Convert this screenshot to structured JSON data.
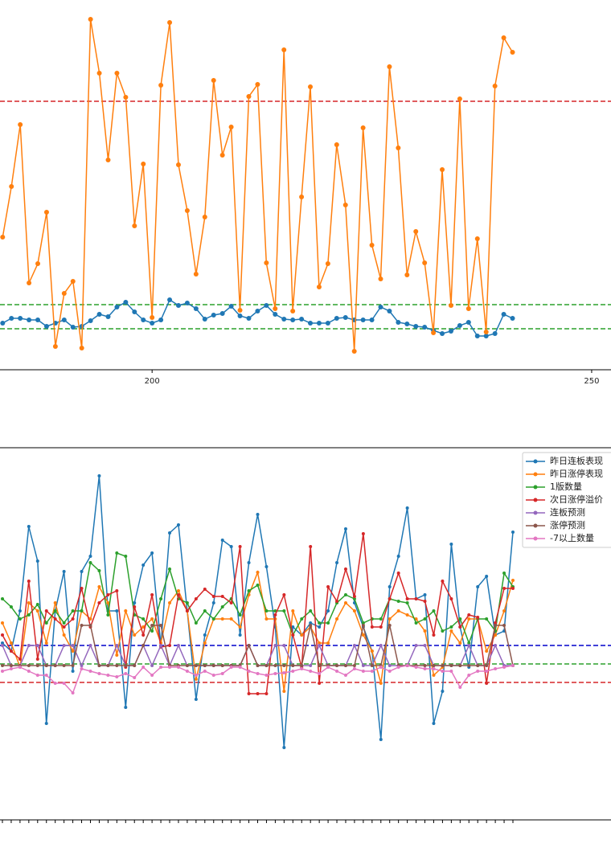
{
  "chart_data": [
    {
      "type": "line",
      "x": [
        183,
        184,
        185,
        186,
        187,
        188,
        189,
        190,
        191,
        192,
        193,
        194,
        195,
        196,
        197,
        198,
        199,
        200,
        201,
        202,
        203,
        204,
        205,
        206,
        207,
        208,
        209,
        210,
        211,
        212,
        213,
        214,
        215,
        216,
        217,
        218,
        219,
        220,
        221,
        222,
        223,
        224,
        225,
        226,
        227,
        228,
        229,
        230,
        231,
        232,
        233,
        234,
        235,
        236,
        237,
        238,
        239,
        240,
        241
      ],
      "xlim": [
        182.7,
        252.2
      ],
      "xticks": [
        200,
        250
      ],
      "ylim": [
        0,
        460
      ],
      "series": [
        {
          "color": "#1f77b4",
          "values": [
            58,
            64,
            64,
            62,
            62,
            54,
            58,
            62,
            53,
            54,
            61,
            69,
            66,
            78,
            84,
            72,
            62,
            58,
            62,
            87,
            80,
            83,
            76,
            63,
            68,
            70,
            79,
            67,
            64,
            73,
            80,
            69,
            63,
            62,
            63,
            58,
            58,
            58,
            64,
            65,
            62,
            62,
            62,
            78,
            73,
            59,
            57,
            54,
            53,
            49,
            45,
            48,
            55,
            59,
            42,
            42,
            45,
            69,
            64
          ]
        },
        {
          "color": "#ff7f0e",
          "values": [
            165,
            228,
            305,
            108,
            132,
            196,
            29,
            95,
            110,
            27,
            436,
            369,
            261,
            369,
            339,
            179,
            256,
            65,
            354,
            432,
            255,
            198,
            119,
            190,
            360,
            267,
            302,
            74,
            340,
            355,
            133,
            76,
            398,
            73,
            215,
            352,
            103,
            132,
            280,
            205,
            23,
            301,
            155,
            113,
            377,
            276,
            118,
            172,
            133,
            46,
            249,
            80,
            337,
            76,
            163,
            47,
            353,
            413,
            395
          ]
        }
      ],
      "hlines": [
        {
          "value": 334,
          "color": "#d62728"
        },
        {
          "value": 81,
          "color": "#2ca02c"
        },
        {
          "value": 51,
          "color": "#2ca02c"
        }
      ]
    },
    {
      "type": "line",
      "categories": [
        null,
        null,
        null,
        null,
        null,
        null,
        null,
        null,
        null,
        null,
        null,
        null,
        null,
        null,
        null,
        null,
        null,
        null,
        null,
        null,
        null,
        null,
        null,
        null,
        null,
        null,
        null,
        null,
        null,
        null,
        null,
        null,
        null,
        null,
        null,
        null,
        null,
        null,
        null,
        null,
        null,
        null,
        null,
        null,
        null,
        null,
        null,
        null,
        null,
        null,
        null,
        null,
        null,
        null,
        null,
        null,
        null,
        null,
        null
      ],
      "ylim": [
        0,
        463
      ],
      "legend": "upper right",
      "series": [
        {
          "name": "昨日连板表现",
          "color": "#1f77b4",
          "values": [
            220,
            210,
            260,
            365,
            322,
            120,
            260,
            309,
            185,
            309,
            328,
            428,
            260,
            260,
            140,
            270,
            317,
            332,
            217,
            357,
            367,
            260,
            150,
            230,
            270,
            348,
            340,
            230,
            320,
            380,
            315,
            240,
            90,
            240,
            230,
            245,
            240,
            260,
            320,
            362,
            270,
            240,
            210,
            100,
            290,
            328,
            388,
            275,
            280,
            120,
            160,
            343,
            240,
            190,
            290,
            303,
            230,
            235,
            358
          ]
        },
        {
          "name": "昨日涨停表现",
          "color": "#ff7f0e",
          "values": [
            245,
            220,
            190,
            270,
            260,
            220,
            270,
            230,
            210,
            260,
            250,
            290,
            270,
            205,
            260,
            230,
            240,
            250,
            220,
            270,
            285,
            260,
            175,
            220,
            250,
            250,
            250,
            240,
            280,
            308,
            250,
            250,
            160,
            260,
            230,
            240,
            220,
            220,
            250,
            270,
            260,
            230,
            210,
            170,
            250,
            260,
            255,
            250,
            235,
            180,
            190,
            235,
            220,
            250,
            250,
            210,
            230,
            260,
            298
          ]
        },
        {
          "name": "1版数量",
          "color": "#2ca02c",
          "values": [
            275,
            265,
            250,
            255,
            268,
            245,
            260,
            245,
            260,
            260,
            320,
            310,
            255,
            332,
            328,
            255,
            250,
            235,
            275,
            312,
            275,
            270,
            245,
            260,
            250,
            265,
            275,
            255,
            285,
            292,
            260,
            260,
            260,
            230,
            250,
            260,
            245,
            245,
            270,
            280,
            275,
            245,
            250,
            250,
            275,
            272,
            270,
            245,
            250,
            260,
            235,
            240,
            250,
            220,
            250,
            250,
            235,
            307,
            290
          ]
        },
        {
          "name": "次日涨停溢价",
          "color": "#d62728",
          "values": [
            230,
            210,
            200,
            297,
            200,
            260,
            250,
            240,
            250,
            288,
            240,
            270,
            280,
            285,
            190,
            265,
            230,
            280,
            215,
            217,
            280,
            260,
            275,
            287,
            278,
            278,
            270,
            340,
            157,
            157,
            157,
            255,
            280,
            230,
            190,
            340,
            170,
            290,
            272,
            312,
            278,
            356,
            240,
            240,
            275,
            307,
            275,
            275,
            272,
            230,
            297,
            275,
            240,
            255,
            252,
            170,
            245,
            288,
            288
          ]
        },
        {
          "name": "连板预测",
          "color": "#9467bd",
          "values": [
            217,
            192,
            192,
            217,
            217,
            192,
            192,
            217,
            217,
            192,
            217,
            192,
            192,
            217,
            192,
            192,
            217,
            192,
            217,
            192,
            217,
            192,
            192,
            192,
            192,
            192,
            192,
            192,
            217,
            192,
            192,
            217,
            217,
            192,
            192,
            192,
            217,
            192,
            192,
            192,
            217,
            192,
            192,
            217,
            192,
            192,
            192,
            217,
            217,
            192,
            192,
            192,
            192,
            217,
            192,
            192,
            217,
            192,
            192
          ]
        },
        {
          "name": "涨停预测",
          "color": "#8c564b",
          "values": [
            192,
            192,
            192,
            192,
            192,
            192,
            192,
            192,
            192,
            242,
            242,
            192,
            192,
            192,
            192,
            192,
            217,
            242,
            242,
            192,
            192,
            192,
            192,
            192,
            192,
            192,
            192,
            192,
            217,
            192,
            192,
            192,
            192,
            192,
            192,
            242,
            192,
            192,
            192,
            192,
            192,
            242,
            192,
            192,
            242,
            192,
            192,
            192,
            192,
            192,
            192,
            192,
            192,
            192,
            192,
            192,
            242,
            242,
            192
          ]
        },
        {
          "name": "-7以上数量",
          "color": "#e377c2",
          "values": [
            185,
            188,
            190,
            185,
            180,
            180,
            170,
            170,
            158,
            188,
            185,
            182,
            180,
            178,
            182,
            177,
            190,
            180,
            190,
            190,
            190,
            185,
            180,
            185,
            180,
            182,
            190,
            190,
            185,
            182,
            180,
            182,
            183,
            185,
            188,
            185,
            182,
            190,
            185,
            180,
            188,
            185,
            185,
            190,
            185,
            190,
            192,
            190,
            188,
            188,
            185,
            185,
            165,
            180,
            185,
            185,
            188,
            190,
            192
          ]
        }
      ],
      "hlines": [
        {
          "value": 217,
          "color": "#0000cc"
        },
        {
          "value": 194,
          "color": "#2ca02c"
        },
        {
          "value": 171,
          "color": "#d62728"
        }
      ]
    }
  ]
}
